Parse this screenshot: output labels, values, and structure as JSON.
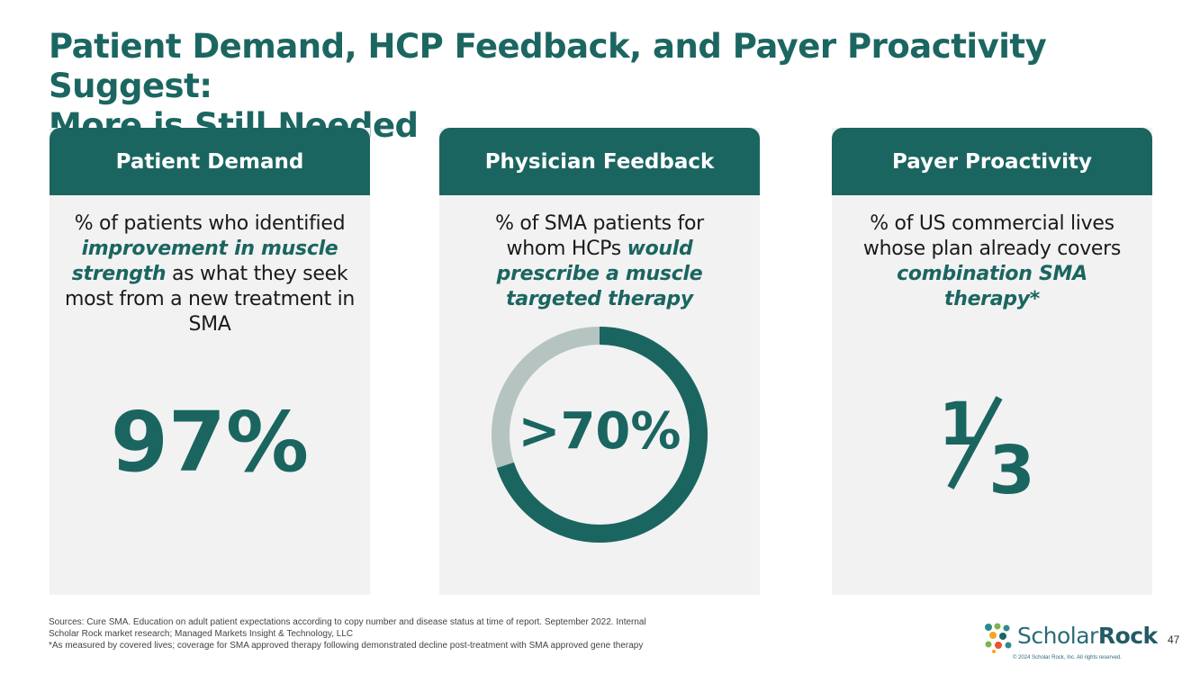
{
  "slide": {
    "title_line1": "Patient Demand, HCP Feedback, and Payer Proactivity Suggest:",
    "title_line2": "More is Still Needed",
    "page_number": "47"
  },
  "colors": {
    "brand": "#1b6560",
    "ring_light": "#b5c4c1",
    "card_bg": "#f2f2f2"
  },
  "cards": [
    {
      "header": "Patient Demand",
      "text_a": "% of patients who identified ",
      "emphasis": "improvement in muscle strength",
      "text_b": " as what they seek most from a new treatment in SMA",
      "stat": "97%"
    },
    {
      "header": "Physician Feedback",
      "text_a": "% of SMA patients for whom HCPs ",
      "emphasis": "would prescribe a muscle targeted therapy",
      "text_b": "",
      "stat": ">70%",
      "ring_fraction": 0.7
    },
    {
      "header": "Payer Proactivity",
      "text_a": "% of US commercial lives whose plan already covers ",
      "emphasis": "combination SMA therapy",
      "text_b": "*",
      "stat_numerator": "1",
      "stat_denominator": "3"
    }
  ],
  "footnotes": [
    "Sources: Cure SMA. Education on adult patient expectations according to copy number and disease status at time of report. September 2022. Internal",
    "Scholar Rock market research; Managed Markets Insight & Technology, LLC",
    "*As measured by covered lives; coverage for SMA approved therapy following demonstrated decline post-treatment with SMA approved gene therapy"
  ],
  "logo": {
    "name_light": "Scholar",
    "name_bold": "Rock",
    "copyright": "© 2024 Scholar Rock, Inc. All rights reserved."
  }
}
